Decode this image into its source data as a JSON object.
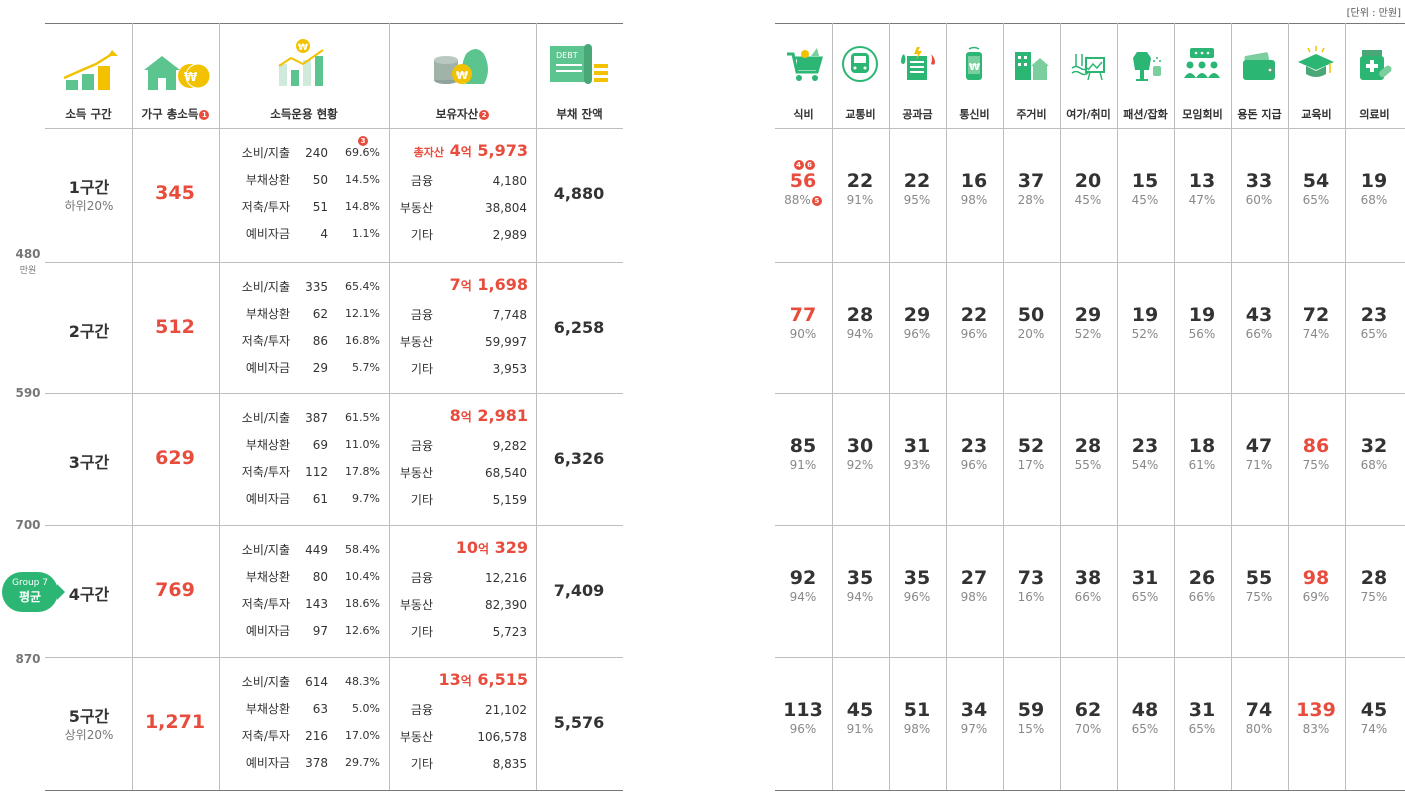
{
  "unit_note": "[단위 : 만원]",
  "left_headers": {
    "tier": "소득 구간",
    "income": "가구 총소득",
    "usage": "소득운용 현황",
    "assets": "보유자산",
    "debt": "부채 잔액",
    "badge_income": "1",
    "badge_assets": "2",
    "badge_usage": "3"
  },
  "axis": {
    "unit": "만원",
    "ticks": [
      "480",
      "590",
      "700",
      "870"
    ]
  },
  "avg_pill": {
    "group": "Group 7",
    "label": "평균"
  },
  "tiers": [
    {
      "name": "1구간",
      "sub": "하위20%",
      "income": "345",
      "debt": "4,880",
      "usage": [
        {
          "label": "소비/지출",
          "val": "240",
          "pct": "69.6%"
        },
        {
          "label": "부채상환",
          "val": "50",
          "pct": "14.5%"
        },
        {
          "label": "저축/투자",
          "val": "51",
          "pct": "14.8%"
        },
        {
          "label": "예비자금",
          "val": "4",
          "pct": "1.1%"
        }
      ],
      "total_prefix": "총자산",
      "total_eok": "4",
      "total_unit": "억",
      "total_rest": "5,973",
      "assets": [
        {
          "label": "금융",
          "val": "4,180"
        },
        {
          "label": "부동산",
          "val": "38,804"
        },
        {
          "label": "기타",
          "val": "2,989"
        }
      ]
    },
    {
      "name": "2구간",
      "sub": "",
      "income": "512",
      "debt": "6,258",
      "usage": [
        {
          "label": "소비/지출",
          "val": "335",
          "pct": "65.4%"
        },
        {
          "label": "부채상환",
          "val": "62",
          "pct": "12.1%"
        },
        {
          "label": "저축/투자",
          "val": "86",
          "pct": "16.8%"
        },
        {
          "label": "예비자금",
          "val": "29",
          "pct": "5.7%"
        }
      ],
      "total_prefix": "",
      "total_eok": "7",
      "total_unit": "억",
      "total_rest": "1,698",
      "assets": [
        {
          "label": "금융",
          "val": "7,748"
        },
        {
          "label": "부동산",
          "val": "59,997"
        },
        {
          "label": "기타",
          "val": "3,953"
        }
      ]
    },
    {
      "name": "3구간",
      "sub": "",
      "income": "629",
      "debt": "6,326",
      "usage": [
        {
          "label": "소비/지출",
          "val": "387",
          "pct": "61.5%"
        },
        {
          "label": "부채상환",
          "val": "69",
          "pct": "11.0%"
        },
        {
          "label": "저축/투자",
          "val": "112",
          "pct": "17.8%"
        },
        {
          "label": "예비자금",
          "val": "61",
          "pct": "9.7%"
        }
      ],
      "total_prefix": "",
      "total_eok": "8",
      "total_unit": "억",
      "total_rest": "2,981",
      "assets": [
        {
          "label": "금융",
          "val": "9,282"
        },
        {
          "label": "부동산",
          "val": "68,540"
        },
        {
          "label": "기타",
          "val": "5,159"
        }
      ]
    },
    {
      "name": "4구간",
      "sub": "",
      "income": "769",
      "debt": "7,409",
      "usage": [
        {
          "label": "소비/지출",
          "val": "449",
          "pct": "58.4%"
        },
        {
          "label": "부채상환",
          "val": "80",
          "pct": "10.4%"
        },
        {
          "label": "저축/투자",
          "val": "143",
          "pct": "18.6%"
        },
        {
          "label": "예비자금",
          "val": "97",
          "pct": "12.6%"
        }
      ],
      "total_prefix": "",
      "total_eok": "10",
      "total_unit": "억",
      "total_rest": "329",
      "assets": [
        {
          "label": "금융",
          "val": "12,216"
        },
        {
          "label": "부동산",
          "val": "82,390"
        },
        {
          "label": "기타",
          "val": "5,723"
        }
      ]
    },
    {
      "name": "5구간",
      "sub": "상위20%",
      "income": "1,271",
      "debt": "5,576",
      "usage": [
        {
          "label": "소비/지출",
          "val": "614",
          "pct": "48.3%"
        },
        {
          "label": "부채상환",
          "val": "63",
          "pct": "5.0%"
        },
        {
          "label": "저축/투자",
          "val": "216",
          "pct": "17.0%"
        },
        {
          "label": "예비자금",
          "val": "378",
          "pct": "29.7%"
        }
      ],
      "total_prefix": "",
      "total_eok": "13",
      "total_unit": "억",
      "total_rest": "6,515",
      "assets": [
        {
          "label": "금융",
          "val": "21,102"
        },
        {
          "label": "부동산",
          "val": "106,578"
        },
        {
          "label": "기타",
          "val": "8,835"
        }
      ]
    }
  ],
  "categories": [
    {
      "label": "식비",
      "icon": "cart-icon"
    },
    {
      "label": "교통비",
      "icon": "train-icon"
    },
    {
      "label": "공과금",
      "icon": "utility-bill-icon"
    },
    {
      "label": "통신비",
      "icon": "phone-icon"
    },
    {
      "label": "주거비",
      "icon": "house-building-icon"
    },
    {
      "label": "여가/취미",
      "icon": "leisure-icon"
    },
    {
      "label": "패션/잡화",
      "icon": "fashion-icon"
    },
    {
      "label": "모임회비",
      "icon": "meeting-icon"
    },
    {
      "label": "용돈 지급",
      "icon": "wallet-icon"
    },
    {
      "label": "교육비",
      "icon": "graduation-cap-icon"
    },
    {
      "label": "의료비",
      "icon": "medicine-icon"
    }
  ],
  "first_cell_badges": [
    "4",
    "6"
  ],
  "first_cell_pct_badge": "5",
  "grid": [
    [
      {
        "v": "56",
        "p": "88%",
        "red": true
      },
      {
        "v": "22",
        "p": "91%"
      },
      {
        "v": "22",
        "p": "95%"
      },
      {
        "v": "16",
        "p": "98%"
      },
      {
        "v": "37",
        "p": "28%"
      },
      {
        "v": "20",
        "p": "45%"
      },
      {
        "v": "15",
        "p": "45%"
      },
      {
        "v": "13",
        "p": "47%"
      },
      {
        "v": "33",
        "p": "60%"
      },
      {
        "v": "54",
        "p": "65%"
      },
      {
        "v": "19",
        "p": "68%"
      }
    ],
    [
      {
        "v": "77",
        "p": "90%",
        "red": true
      },
      {
        "v": "28",
        "p": "94%"
      },
      {
        "v": "29",
        "p": "96%"
      },
      {
        "v": "22",
        "p": "96%"
      },
      {
        "v": "50",
        "p": "20%"
      },
      {
        "v": "29",
        "p": "52%"
      },
      {
        "v": "19",
        "p": "52%"
      },
      {
        "v": "19",
        "p": "56%"
      },
      {
        "v": "43",
        "p": "66%"
      },
      {
        "v": "72",
        "p": "74%"
      },
      {
        "v": "23",
        "p": "65%"
      }
    ],
    [
      {
        "v": "85",
        "p": "91%"
      },
      {
        "v": "30",
        "p": "92%"
      },
      {
        "v": "31",
        "p": "93%"
      },
      {
        "v": "23",
        "p": "96%"
      },
      {
        "v": "52",
        "p": "17%"
      },
      {
        "v": "28",
        "p": "55%"
      },
      {
        "v": "23",
        "p": "54%"
      },
      {
        "v": "18",
        "p": "61%"
      },
      {
        "v": "47",
        "p": "71%"
      },
      {
        "v": "86",
        "p": "75%",
        "red": true
      },
      {
        "v": "32",
        "p": "68%"
      }
    ],
    [
      {
        "v": "92",
        "p": "94%"
      },
      {
        "v": "35",
        "p": "94%"
      },
      {
        "v": "35",
        "p": "96%"
      },
      {
        "v": "27",
        "p": "98%"
      },
      {
        "v": "73",
        "p": "16%"
      },
      {
        "v": "38",
        "p": "66%"
      },
      {
        "v": "31",
        "p": "65%"
      },
      {
        "v": "26",
        "p": "66%"
      },
      {
        "v": "55",
        "p": "75%"
      },
      {
        "v": "98",
        "p": "69%",
        "red": true
      },
      {
        "v": "28",
        "p": "75%"
      }
    ],
    [
      {
        "v": "113",
        "p": "96%"
      },
      {
        "v": "45",
        "p": "91%"
      },
      {
        "v": "51",
        "p": "98%"
      },
      {
        "v": "34",
        "p": "97%"
      },
      {
        "v": "59",
        "p": "15%"
      },
      {
        "v": "62",
        "p": "70%"
      },
      {
        "v": "48",
        "p": "65%"
      },
      {
        "v": "31",
        "p": "65%"
      },
      {
        "v": "74",
        "p": "80%"
      },
      {
        "v": "139",
        "p": "83%",
        "red": true
      },
      {
        "v": "45",
        "p": "74%"
      }
    ]
  ],
  "colors": {
    "accent": "#e84c3d",
    "green": "#2bb673",
    "yellow": "#f2c200"
  }
}
